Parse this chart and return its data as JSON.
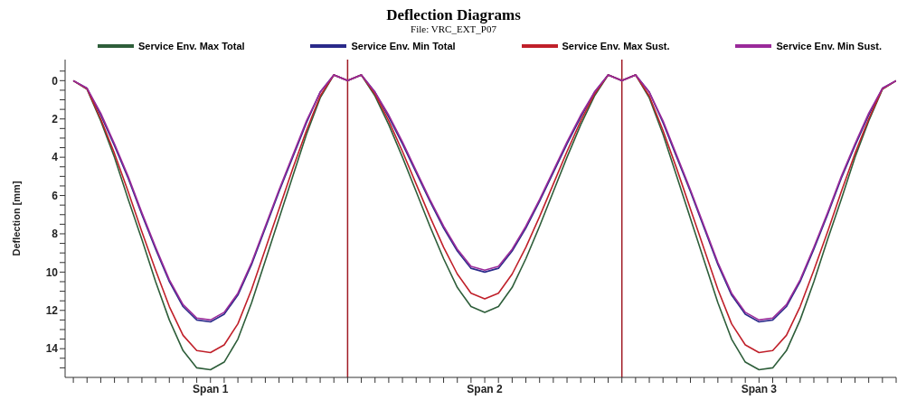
{
  "chart_data": {
    "type": "line",
    "title": "Deflection Diagrams",
    "subtitle": "File: VRC_EXT_P07",
    "ylabel": "Deflection [mm]",
    "categories": [
      null,
      null,
      null,
      null,
      null,
      null,
      null,
      null,
      null,
      null,
      "Span 1",
      null,
      null,
      null,
      null,
      null,
      null,
      null,
      null,
      null,
      null,
      null,
      null,
      null,
      null,
      null,
      null,
      null,
      null,
      null,
      "Span 2",
      null,
      null,
      null,
      null,
      null,
      null,
      null,
      null,
      null,
      null,
      null,
      null,
      null,
      null,
      null,
      null,
      null,
      null,
      null,
      "Span 3",
      null,
      null,
      null,
      null,
      null,
      null,
      null,
      null,
      null,
      null
    ],
    "series": [
      {
        "name": "Service Env. Max Total",
        "color": "#2e5e3a",
        "values": [
          0,
          0.45,
          2.1,
          4.0,
          6.2,
          8.3,
          10.5,
          12.5,
          14.1,
          15.0,
          15.1,
          14.7,
          13.5,
          11.6,
          9.4,
          7.2,
          5.0,
          2.8,
          0.9,
          -0.3,
          0,
          -0.3,
          0.8,
          2.3,
          4.0,
          5.8,
          7.6,
          9.3,
          10.8,
          11.8,
          12.1,
          11.8,
          10.8,
          9.3,
          7.6,
          5.8,
          4.0,
          2.3,
          0.8,
          -0.3,
          0,
          -0.3,
          0.9,
          2.8,
          5.0,
          7.2,
          9.4,
          11.6,
          13.5,
          14.7,
          15.1,
          15.0,
          14.1,
          12.5,
          10.5,
          8.3,
          6.2,
          4.0,
          2.1,
          0.45,
          0
        ]
      },
      {
        "name": "Service Env. Min Total",
        "color": "#2a2a8a",
        "values": [
          0,
          0.4,
          1.8,
          3.4,
          5.1,
          7.0,
          8.8,
          10.5,
          11.8,
          12.5,
          12.6,
          12.2,
          11.2,
          9.6,
          7.7,
          5.8,
          4.0,
          2.2,
          0.6,
          -0.3,
          0,
          -0.3,
          0.6,
          1.9,
          3.3,
          4.8,
          6.3,
          7.7,
          8.9,
          9.8,
          10.0,
          9.8,
          8.9,
          7.7,
          6.3,
          4.8,
          3.3,
          1.9,
          0.6,
          -0.3,
          0,
          -0.3,
          0.6,
          2.2,
          4.0,
          5.8,
          7.7,
          9.6,
          11.2,
          12.2,
          12.6,
          12.5,
          11.8,
          10.5,
          8.8,
          7.0,
          5.1,
          3.4,
          1.8,
          0.4,
          0
        ]
      },
      {
        "name": "Service Env. Max Sust.",
        "color": "#c0202a",
        "values": [
          0,
          0.43,
          2.0,
          3.8,
          5.8,
          7.9,
          9.9,
          11.8,
          13.3,
          14.1,
          14.2,
          13.8,
          12.7,
          10.9,
          8.8,
          6.7,
          4.6,
          2.6,
          0.8,
          -0.3,
          0,
          -0.3,
          0.7,
          2.1,
          3.7,
          5.4,
          7.1,
          8.7,
          10.1,
          11.1,
          11.4,
          11.1,
          10.1,
          8.7,
          7.1,
          5.4,
          3.7,
          2.1,
          0.7,
          -0.3,
          0,
          -0.3,
          0.8,
          2.6,
          4.6,
          6.7,
          8.8,
          10.9,
          12.7,
          13.8,
          14.2,
          14.1,
          13.3,
          11.8,
          9.9,
          7.9,
          5.8,
          3.8,
          2.0,
          0.43,
          0
        ]
      },
      {
        "name": "Service Env. Min Sust.",
        "color": "#9a2a9a",
        "values": [
          0,
          0.4,
          1.7,
          3.3,
          5.0,
          6.9,
          8.7,
          10.4,
          11.7,
          12.4,
          12.5,
          12.1,
          11.1,
          9.5,
          7.6,
          5.7,
          3.9,
          2.1,
          0.6,
          -0.3,
          0,
          -0.3,
          0.6,
          1.8,
          3.2,
          4.7,
          6.2,
          7.6,
          8.8,
          9.7,
          9.9,
          9.7,
          8.8,
          7.6,
          6.2,
          4.7,
          3.2,
          1.8,
          0.6,
          -0.3,
          0,
          -0.3,
          0.6,
          2.1,
          3.9,
          5.7,
          7.6,
          9.5,
          11.1,
          12.1,
          12.5,
          12.4,
          11.7,
          10.4,
          8.7,
          6.9,
          5.0,
          3.3,
          1.7,
          0.4,
          0
        ]
      }
    ],
    "ylim": [
      15.5,
      -1.1
    ],
    "yticks": [
      {
        "value": -0.5,
        "label": null
      },
      0,
      {
        "value": 0.5,
        "label": null
      },
      {
        "value": 1,
        "label": null
      },
      {
        "value": 1.5,
        "label": null
      },
      2,
      {
        "value": 2.5,
        "label": null
      },
      {
        "value": 3,
        "label": null
      },
      {
        "value": 3.5,
        "label": null
      },
      4,
      {
        "value": 4.5,
        "label": null
      },
      {
        "value": 5,
        "label": null
      },
      {
        "value": 5.5,
        "label": null
      },
      6,
      {
        "value": 6.5,
        "label": null
      },
      {
        "value": 7,
        "label": null
      },
      {
        "value": 7.5,
        "label": null
      },
      8,
      {
        "value": 8.5,
        "label": null
      },
      {
        "value": 9,
        "label": null
      },
      {
        "value": 9.5,
        "label": null
      },
      10,
      {
        "value": 10.5,
        "label": null
      },
      {
        "value": 11,
        "label": null
      },
      {
        "value": 11.5,
        "label": null
      },
      12,
      {
        "value": 12.5,
        "label": null
      },
      {
        "value": 13,
        "label": null
      },
      {
        "value": 13.5,
        "label": null
      },
      14,
      {
        "value": 14.5,
        "label": null
      },
      {
        "value": 15,
        "label": null
      }
    ],
    "legend": "top",
    "marker": "none",
    "line_style": "solid"
  }
}
